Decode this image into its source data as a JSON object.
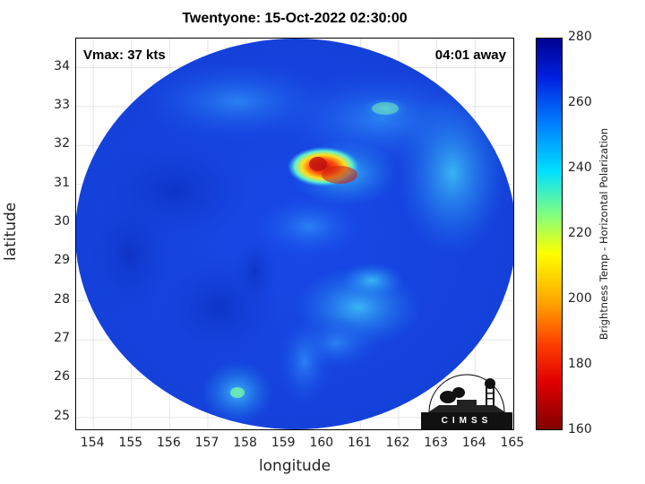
{
  "title": "Twentyone: 15-Oct-2022 02:30:00",
  "vmax_label": "Vmax: 37 kts",
  "away_label": "04:01 away",
  "xlabel": "longitude",
  "ylabel": "latitude",
  "x_ticks": [
    "154",
    "155",
    "156",
    "157",
    "158",
    "159",
    "160",
    "161",
    "162",
    "163",
    "164",
    "165"
  ],
  "y_ticks": [
    "25",
    "26",
    "27",
    "28",
    "29",
    "30",
    "31",
    "32",
    "33",
    "34"
  ],
  "colorbar": {
    "label": "Brightness Temp - Horizontal Polarization",
    "ticks": [
      "160",
      "180",
      "200",
      "220",
      "240",
      "260",
      "280"
    ],
    "range": [
      160,
      280
    ],
    "colors": [
      "#800000",
      "#e00000",
      "#ff4000",
      "#ffa000",
      "#ffff00",
      "#80ff80",
      "#00e0ff",
      "#0080ff",
      "#0020e0",
      "#000090"
    ]
  },
  "map_extent": {
    "lon": [
      153.55,
      165.05
    ],
    "lat": [
      24.65,
      34.75
    ]
  },
  "logo_text": "CIMSS",
  "colors": {
    "cold_core": "#d82010",
    "warm_background": "#1040e0",
    "mid_cloud": "#28a8f0"
  }
}
